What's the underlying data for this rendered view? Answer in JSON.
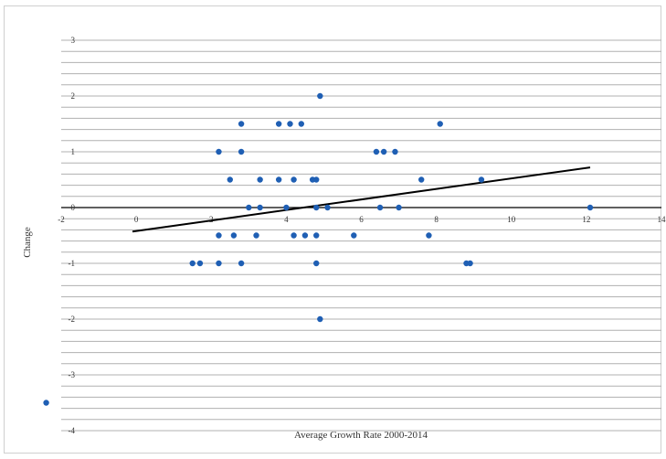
{
  "chart_data": {
    "type": "scatter",
    "title": "",
    "xlabel": "Average Growth Rate 2000-2014",
    "ylabel": "Change",
    "xlim": [
      -2,
      14
    ],
    "ylim": [
      -4,
      3
    ],
    "x_ticks": [
      -2,
      0,
      2,
      4,
      6,
      8,
      10,
      12,
      14
    ],
    "y_ticks": [
      -4,
      -3,
      -2,
      -1,
      0,
      1,
      2,
      3
    ],
    "x_tick_labels": [
      "-2",
      "0",
      "2",
      "4",
      "6",
      "8",
      "10",
      "12",
      "14"
    ],
    "y_tick_labels": [
      "-4",
      "-3",
      "-2",
      "-1",
      "0",
      "1",
      "2",
      "3"
    ],
    "grid": "horizontal lines every 0.2 units",
    "legend": "none",
    "colors": {
      "points": "#1f5fb4",
      "trendline": "#000000",
      "grid": "#b0b0b0"
    },
    "series": [
      {
        "points": [
          [
            -2.4,
            -3.5
          ],
          [
            1.5,
            -1
          ],
          [
            1.7,
            -1
          ],
          [
            2.2,
            -1
          ],
          [
            2.8,
            -1
          ],
          [
            4.8,
            -1
          ],
          [
            8.8,
            -1
          ],
          [
            8.9,
            -1
          ],
          [
            2.2,
            -0.5
          ],
          [
            2.6,
            -0.5
          ],
          [
            3.2,
            -0.5
          ],
          [
            4.2,
            -0.5
          ],
          [
            4.5,
            -0.5
          ],
          [
            4.8,
            -0.5
          ],
          [
            5.8,
            -0.5
          ],
          [
            7.8,
            -0.5
          ],
          [
            3.0,
            0
          ],
          [
            3.3,
            0
          ],
          [
            4.0,
            0
          ],
          [
            4.8,
            0
          ],
          [
            5.1,
            0
          ],
          [
            6.5,
            0
          ],
          [
            7.0,
            0
          ],
          [
            12.1,
            0
          ],
          [
            2.5,
            0.5
          ],
          [
            3.3,
            0.5
          ],
          [
            3.8,
            0.5
          ],
          [
            4.2,
            0.5
          ],
          [
            4.7,
            0.5
          ],
          [
            4.8,
            0.5
          ],
          [
            7.6,
            0.5
          ],
          [
            9.2,
            0.5
          ],
          [
            2.2,
            1
          ],
          [
            2.8,
            1
          ],
          [
            6.4,
            1
          ],
          [
            6.6,
            1
          ],
          [
            6.9,
            1
          ],
          [
            2.8,
            1.5
          ],
          [
            3.8,
            1.5
          ],
          [
            4.1,
            1.5
          ],
          [
            4.4,
            1.5
          ],
          [
            8.1,
            1.5
          ],
          [
            4.9,
            2
          ],
          [
            4.9,
            -2
          ]
        ]
      }
    ],
    "trendline": {
      "type": "linear",
      "x": [
        -0.1,
        12.1
      ],
      "y": [
        -0.43,
        0.72
      ]
    }
  }
}
